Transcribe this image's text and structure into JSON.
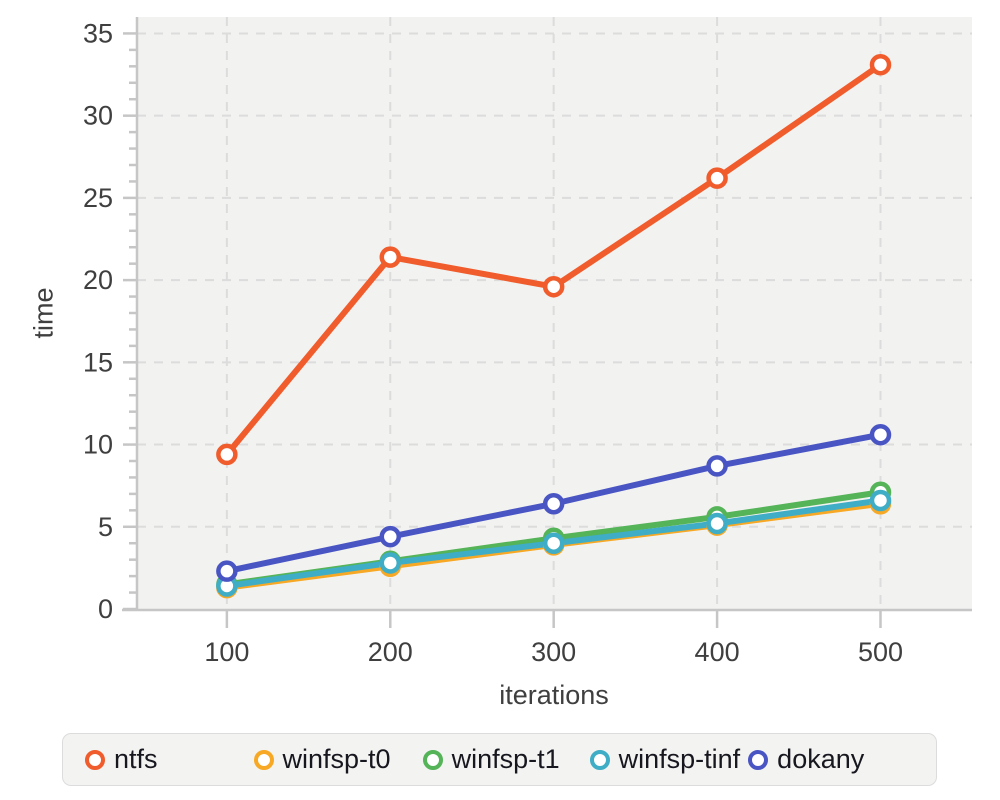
{
  "chart_data": {
    "type": "line",
    "title": "",
    "xlabel": "iterations",
    "ylabel": "time",
    "x": [
      100,
      200,
      300,
      400,
      500
    ],
    "series": [
      {
        "name": "ntfs",
        "color": "#f05c2c",
        "values": [
          9.4,
          21.4,
          19.6,
          26.2,
          33.1
        ]
      },
      {
        "name": "winfsp-t0",
        "color": "#f7a824",
        "values": [
          1.3,
          2.6,
          3.9,
          5.1,
          6.4
        ]
      },
      {
        "name": "winfsp-t1",
        "color": "#55b358",
        "values": [
          1.5,
          2.9,
          4.3,
          5.6,
          7.1
        ]
      },
      {
        "name": "winfsp-tinf",
        "color": "#3fadc5",
        "values": [
          1.4,
          2.8,
          4.0,
          5.2,
          6.6
        ]
      },
      {
        "name": "dokany",
        "color": "#4a55c4",
        "values": [
          2.3,
          4.4,
          6.4,
          8.7,
          10.6
        ]
      }
    ],
    "xticks": [
      100,
      200,
      300,
      400,
      500
    ],
    "yticks": [
      0,
      5,
      10,
      15,
      20,
      25,
      30,
      35
    ],
    "y_minor_step": 1,
    "xlim": [
      45,
      556
    ],
    "ylim": [
      0,
      36
    ],
    "grid": true,
    "legend_position": "bottom",
    "plot_bg": "#f2f2f0",
    "grid_color": "#dcdcdc",
    "axis_color": "#c6c6c6",
    "tick_label_color": "#3f3f3f",
    "legend_text_color": "#17171f"
  }
}
